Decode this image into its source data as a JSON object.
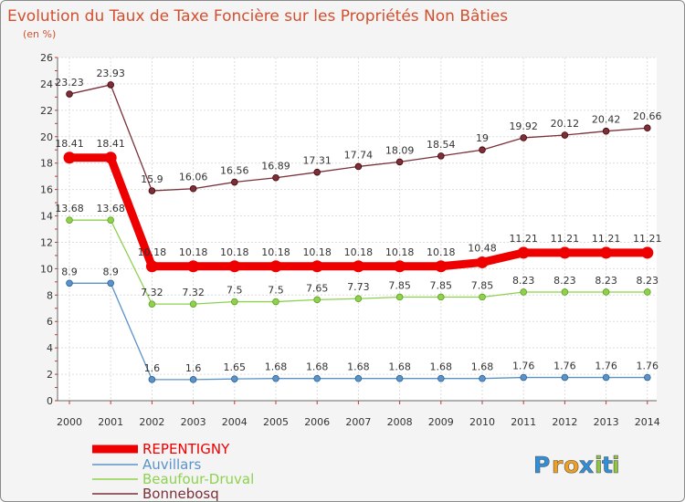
{
  "chart_data": {
    "type": "line",
    "title": "Evolution du Taux de Taxe Foncière sur les Propriétés Non Bâties",
    "subtitle": "(en %)",
    "xlabel": "",
    "ylabel": "(en %)",
    "x": [
      "2000",
      "2001",
      "2002",
      "2003",
      "2004",
      "2005",
      "2006",
      "2007",
      "2008",
      "2009",
      "2010",
      "2011",
      "2012",
      "2013",
      "2014"
    ],
    "ylim": [
      0,
      26
    ],
    "yticks": [
      0,
      2,
      4,
      6,
      8,
      10,
      12,
      14,
      16,
      18,
      20,
      22,
      24,
      26
    ],
    "grid": true,
    "legend_position": "bottom-left",
    "series": [
      {
        "name": "REPENTIGNY",
        "color": "#ee0000",
        "values": [
          18.41,
          18.41,
          10.18,
          10.18,
          10.18,
          10.18,
          10.18,
          10.18,
          10.18,
          10.18,
          10.48,
          11.21,
          11.21,
          11.21,
          11.21
        ],
        "labels": [
          "18.41",
          "18.41",
          "10.18",
          "10.18",
          "10.18",
          "10.18",
          "10.18",
          "10.18",
          "10.18",
          "10.18",
          "10.48",
          "11.21",
          "11.21",
          "11.21",
          "11.21"
        ]
      },
      {
        "name": "Auvillars",
        "color": "#5b93c8",
        "values": [
          8.9,
          8.9,
          1.6,
          1.6,
          1.65,
          1.68,
          1.68,
          1.68,
          1.68,
          1.68,
          1.68,
          1.76,
          1.76,
          1.76,
          1.76
        ],
        "labels": [
          "8.9",
          "8.9",
          "1.6",
          "1.6",
          "1.65",
          "1.68",
          "1.68",
          "1.68",
          "1.68",
          "1.68",
          "1.68",
          "1.76",
          "1.76",
          "1.76",
          "1.76"
        ]
      },
      {
        "name": "Beaufour-Druval",
        "color": "#8fd14f",
        "values": [
          13.68,
          13.68,
          7.32,
          7.32,
          7.5,
          7.5,
          7.65,
          7.73,
          7.85,
          7.85,
          7.85,
          8.23,
          8.23,
          8.23,
          8.23
        ],
        "labels": [
          "13.68",
          "13.68",
          "7.32",
          "7.32",
          "7.5",
          "7.5",
          "7.65",
          "7.73",
          "7.85",
          "7.85",
          "7.85",
          "8.23",
          "8.23",
          "8.23",
          "8.23"
        ]
      },
      {
        "name": "Bonnebosq",
        "color": "#7a3038",
        "values": [
          23.23,
          23.93,
          15.9,
          16.06,
          16.56,
          16.89,
          17.31,
          17.74,
          18.09,
          18.54,
          19,
          19.92,
          20.12,
          20.42,
          20.66
        ],
        "labels": [
          "23.23",
          "23.93",
          "15.9",
          "16.06",
          "16.56",
          "16.89",
          "17.31",
          "17.74",
          "18.09",
          "18.54",
          "19",
          "19.92",
          "20.12",
          "20.42",
          "20.66"
        ]
      }
    ]
  },
  "logo": {
    "letters": [
      "P",
      "r",
      "o",
      "x",
      "i",
      "t",
      "i"
    ],
    "colors": [
      "#2f8fd8",
      "#f0a020",
      "#f0a020",
      "#2f8fd8",
      "#8cc63f",
      "#2f8fd8",
      "#8cc63f"
    ]
  }
}
